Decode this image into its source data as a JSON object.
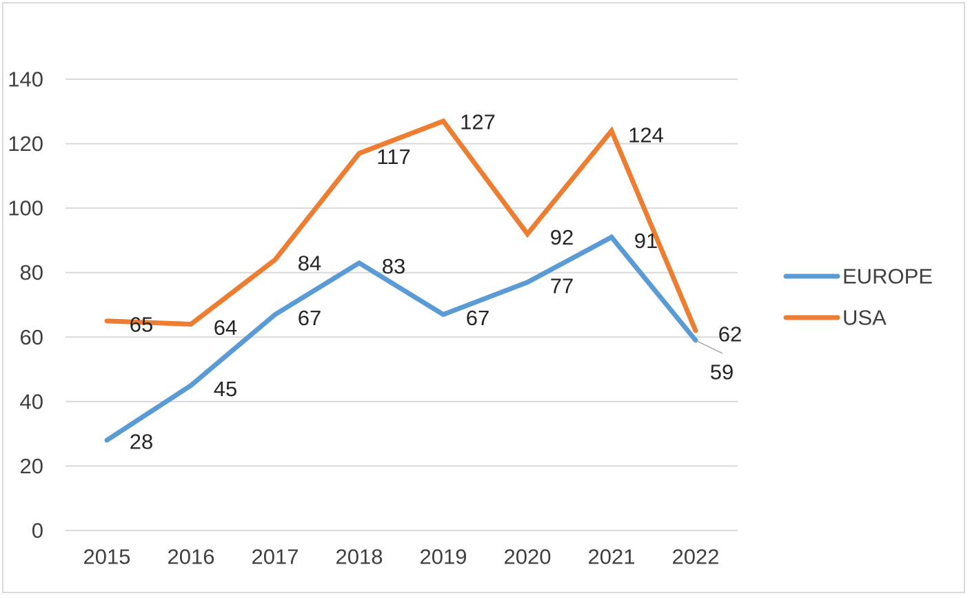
{
  "chart_data": {
    "type": "line",
    "title": "",
    "xlabel": "",
    "ylabel": "",
    "categories": [
      "2015",
      "2016",
      "2017",
      "2018",
      "2019",
      "2020",
      "2021",
      "2022"
    ],
    "ylim": [
      0,
      140
    ],
    "yticks": [
      0,
      20,
      40,
      60,
      80,
      100,
      120,
      140
    ],
    "grid": true,
    "legend_position": "right",
    "series": [
      {
        "name": "EUROPE",
        "color": "#5b9bd5",
        "values": [
          28,
          45,
          67,
          83,
          67,
          77,
          91,
          59
        ]
      },
      {
        "name": "USA",
        "color": "#ed7d31",
        "values": [
          65,
          64,
          84,
          117,
          127,
          92,
          124,
          62
        ]
      }
    ]
  }
}
